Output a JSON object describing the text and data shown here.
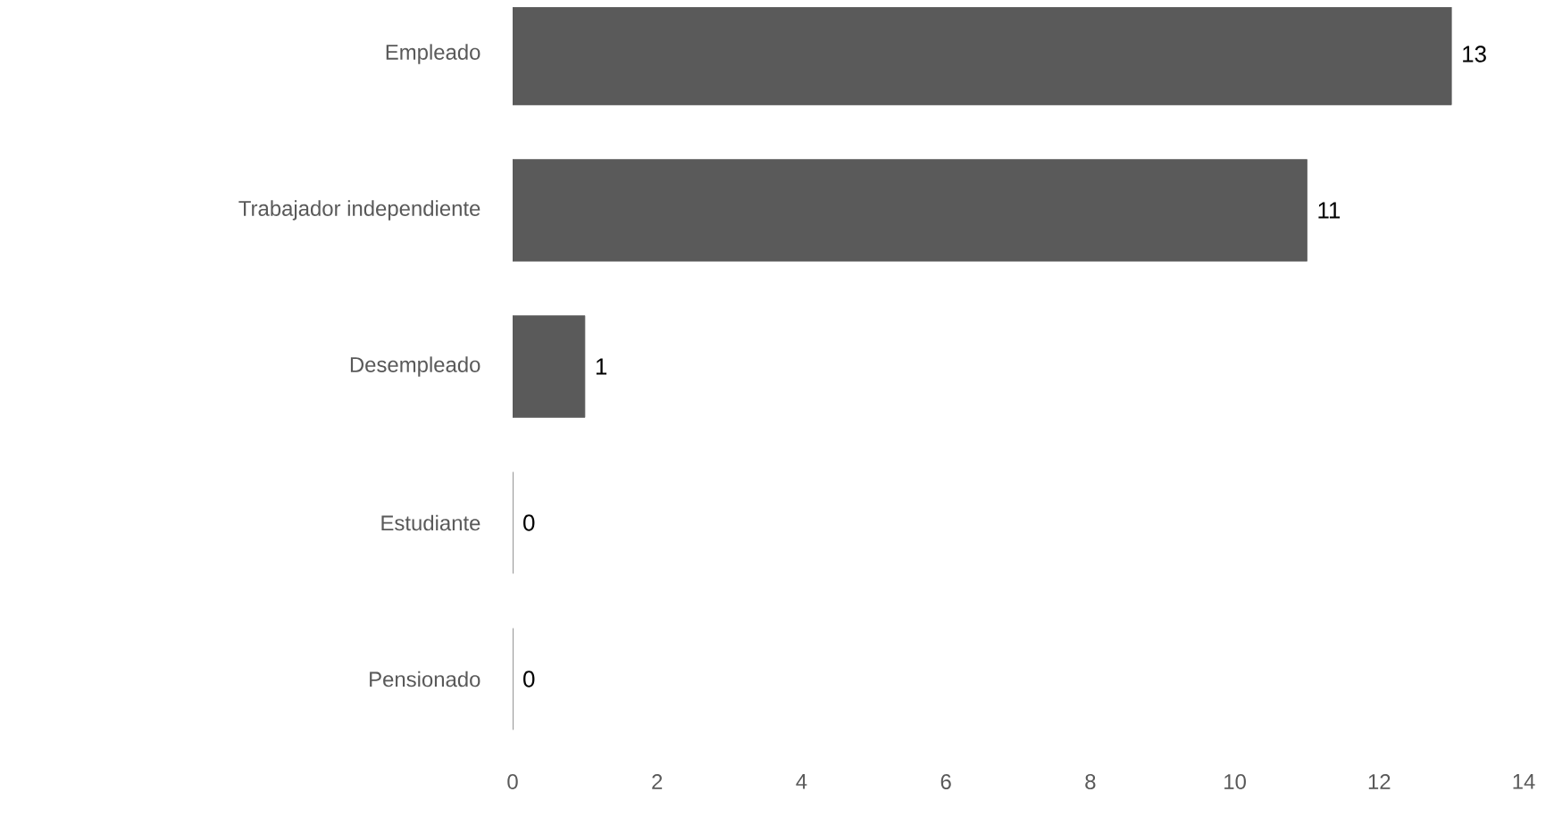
{
  "chart_data": {
    "type": "bar",
    "orientation": "horizontal",
    "categories": [
      "Empleado",
      "Trabajador independiente",
      "Desempleado",
      "Estudiante",
      "Pensionado"
    ],
    "values": [
      13,
      11,
      1,
      0,
      0
    ],
    "color": "#5a5a5a",
    "xlim": [
      0,
      14
    ],
    "xticks": [
      0,
      2,
      4,
      6,
      8,
      10,
      12,
      14
    ],
    "grid": false,
    "data_labels": true
  }
}
